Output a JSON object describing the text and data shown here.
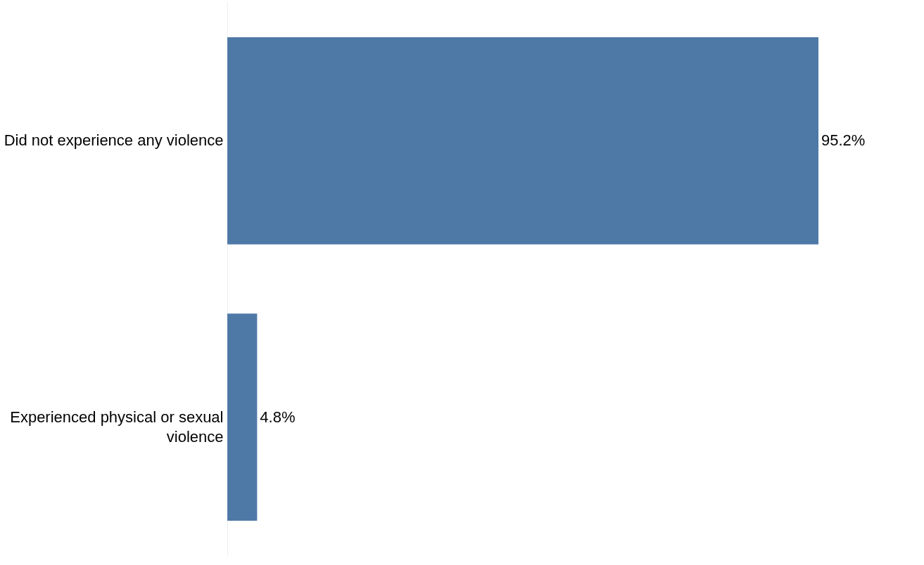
{
  "chart_data": {
    "type": "bar",
    "orientation": "horizontal",
    "categories": [
      "Did not experience any violence",
      "Experienced physical or sexual violence"
    ],
    "values": [
      95.2,
      4.8
    ],
    "value_labels": [
      "95.2%",
      "4.8%"
    ],
    "color": "#4e79a7"
  }
}
